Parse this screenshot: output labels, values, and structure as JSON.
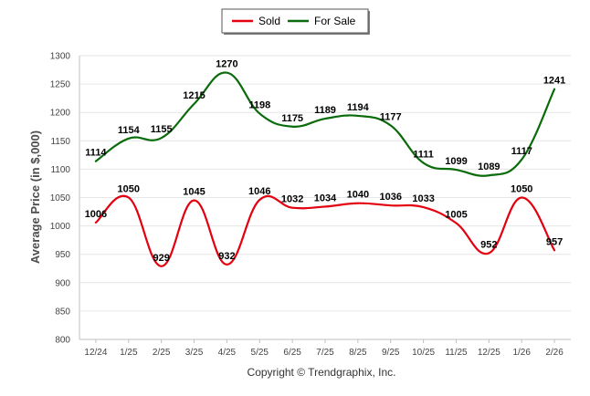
{
  "chart_data": {
    "type": "line",
    "title": "",
    "xlabel": "",
    "ylabel": "Average Price (in $,000)",
    "ylim": [
      800,
      1300
    ],
    "yticks": [
      800,
      850,
      900,
      950,
      1000,
      1050,
      1100,
      1150,
      1200,
      1250,
      1300
    ],
    "grid": true,
    "legend_position": "top-center",
    "categories": [
      "12/24",
      "1/25",
      "2/25",
      "3/25",
      "4/25",
      "5/25",
      "6/25",
      "7/25",
      "8/25",
      "9/25",
      "10/25",
      "11/25",
      "12/25",
      "1/26",
      "2/26"
    ],
    "series": [
      {
        "name": "Sold",
        "color": "#e3000f",
        "values": [
          1006,
          1050,
          929,
          1045,
          932,
          1046,
          1032,
          1034,
          1040,
          1036,
          1033,
          1005,
          952,
          1050,
          957
        ]
      },
      {
        "name": "For Sale",
        "color": "#0a6b0a",
        "values": [
          1114,
          1154,
          1155,
          1215,
          1270,
          1198,
          1175,
          1189,
          1194,
          1177,
          1111,
          1099,
          1089,
          1117,
          1241
        ]
      }
    ]
  },
  "footer": {
    "copyright": "Copyright © Trendgraphix, Inc."
  }
}
